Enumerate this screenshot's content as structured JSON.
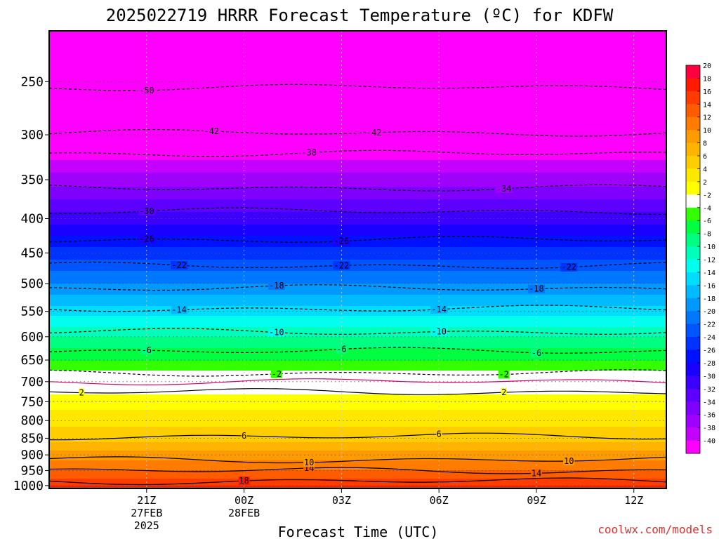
{
  "chart_data": {
    "type": "heatmap",
    "title": "2025022719 HRRR Forecast Temperature (ºC) for KDFW",
    "xlabel": "Forecast Time (UTC)",
    "credit": "coolwx.com/models",
    "x_ticks": [
      {
        "hour": 2,
        "lines": [
          "21Z",
          "27FEB",
          "2025"
        ]
      },
      {
        "hour": 5,
        "lines": [
          "00Z",
          "28FEB"
        ]
      },
      {
        "hour": 8,
        "lines": [
          "03Z"
        ]
      },
      {
        "hour": 11,
        "lines": [
          "06Z"
        ]
      },
      {
        "hour": 14,
        "lines": [
          "09Z"
        ]
      },
      {
        "hour": 17,
        "lines": [
          "12Z"
        ]
      }
    ],
    "xlim_hours": [
      -1,
      18
    ],
    "ylabel": "",
    "y_scale": "log",
    "ylim_hpa": [
      1010,
      210
    ],
    "y_ticks": [
      250,
      300,
      350,
      400,
      450,
      500,
      550,
      600,
      650,
      700,
      750,
      800,
      850,
      900,
      950,
      1000
    ],
    "grid": true,
    "colorbar": {
      "levels": [
        20,
        18,
        16,
        14,
        12,
        10,
        8,
        6,
        4,
        2,
        -2,
        -4,
        -6,
        -8,
        -10,
        -12,
        -14,
        -16,
        -18,
        -20,
        -22,
        -24,
        -26,
        -28,
        -30,
        -32,
        -34,
        -36,
        -38,
        -40
      ],
      "colors": [
        "#ff0040",
        "#ff1a00",
        "#ff3c00",
        "#ff5c00",
        "#ff7c00",
        "#ff9a00",
        "#ffb400",
        "#ffce00",
        "#ffe800",
        "#ffff00",
        "#ffffff",
        "#33ff00",
        "#00ff40",
        "#00ff80",
        "#00ffbb",
        "#00ffee",
        "#00ddff",
        "#00bbff",
        "#0099ff",
        "#0077ff",
        "#0055ff",
        "#0033ff",
        "#0011ff",
        "#1a00ff",
        "#3c00ff",
        "#5e00ff",
        "#7f00ff",
        "#a000ff",
        "#c400ff",
        "#ff00ff"
      ]
    },
    "temperature_layers": [
      {
        "p": 1000,
        "t": 18
      },
      {
        "p": 950,
        "t": 14
      },
      {
        "p": 900,
        "t": 11
      },
      {
        "p": 850,
        "t": 7
      },
      {
        "p": 800,
        "t": 5.5
      },
      {
        "p": 750,
        "t": 3
      },
      {
        "p": 700,
        "t": 0
      },
      {
        "p": 650,
        "t": -4
      },
      {
        "p": 600,
        "t": -8
      },
      {
        "p": 550,
        "t": -13
      },
      {
        "p": 500,
        "t": -18
      },
      {
        "p": 450,
        "t": -23
      },
      {
        "p": 400,
        "t": -29
      },
      {
        "p": 350,
        "t": -35
      },
      {
        "p": 300,
        "t": -42
      },
      {
        "p": 250,
        "t": -50
      }
    ],
    "contours": [
      {
        "value": 18,
        "dashed": false,
        "label_at_hours": [
          5
        ]
      },
      {
        "value": 14,
        "dashed": false,
        "label_at_hours": [
          7,
          14
        ]
      },
      {
        "value": 10,
        "dashed": false,
        "label_at_hours": [
          7,
          15
        ]
      },
      {
        "value": 6,
        "dashed": false,
        "label_at_hours": [
          5,
          11
        ]
      },
      {
        "value": 2,
        "dashed": false,
        "label_at_hours": [
          0,
          13
        ]
      },
      {
        "value": 0,
        "dashed": false,
        "label_at_hours": []
      },
      {
        "value": -2,
        "dashed": true,
        "label_at_hours": [
          6,
          13
        ]
      },
      {
        "value": -6,
        "dashed": true,
        "label_at_hours": [
          2,
          8,
          14
        ]
      },
      {
        "value": -10,
        "dashed": true,
        "label_at_hours": [
          6,
          11
        ]
      },
      {
        "value": -14,
        "dashed": true,
        "label_at_hours": [
          3,
          11
        ]
      },
      {
        "value": -18,
        "dashed": true,
        "label_at_hours": [
          6,
          14
        ]
      },
      {
        "value": -22,
        "dashed": true,
        "label_at_hours": [
          3,
          8,
          15
        ]
      },
      {
        "value": -26,
        "dashed": true,
        "label_at_hours": [
          2,
          8
        ]
      },
      {
        "value": -30,
        "dashed": true,
        "label_at_hours": [
          2
        ]
      },
      {
        "value": -34,
        "dashed": true,
        "label_at_hours": [
          13
        ]
      },
      {
        "value": -38,
        "dashed": true,
        "label_at_hours": [
          7
        ]
      },
      {
        "value": -42,
        "dashed": true,
        "label_at_hours": [
          4,
          9
        ]
      },
      {
        "value": -50,
        "dashed": true,
        "label_at_hours": [
          2
        ]
      }
    ],
    "contour_anchors": {
      "18": 985,
      "14": 950,
      "10": 915,
      "6": 845,
      "2": 725,
      "0": 700,
      "-2": 680,
      "-6": 630,
      "-10": 590,
      "-14": 545,
      "-18": 508,
      "-22": 470,
      "-26": 430,
      "-30": 390,
      "-34": 360,
      "-38": 320,
      "-42": 298,
      "-50": 255
    },
    "ground_color": "#a0522d"
  }
}
